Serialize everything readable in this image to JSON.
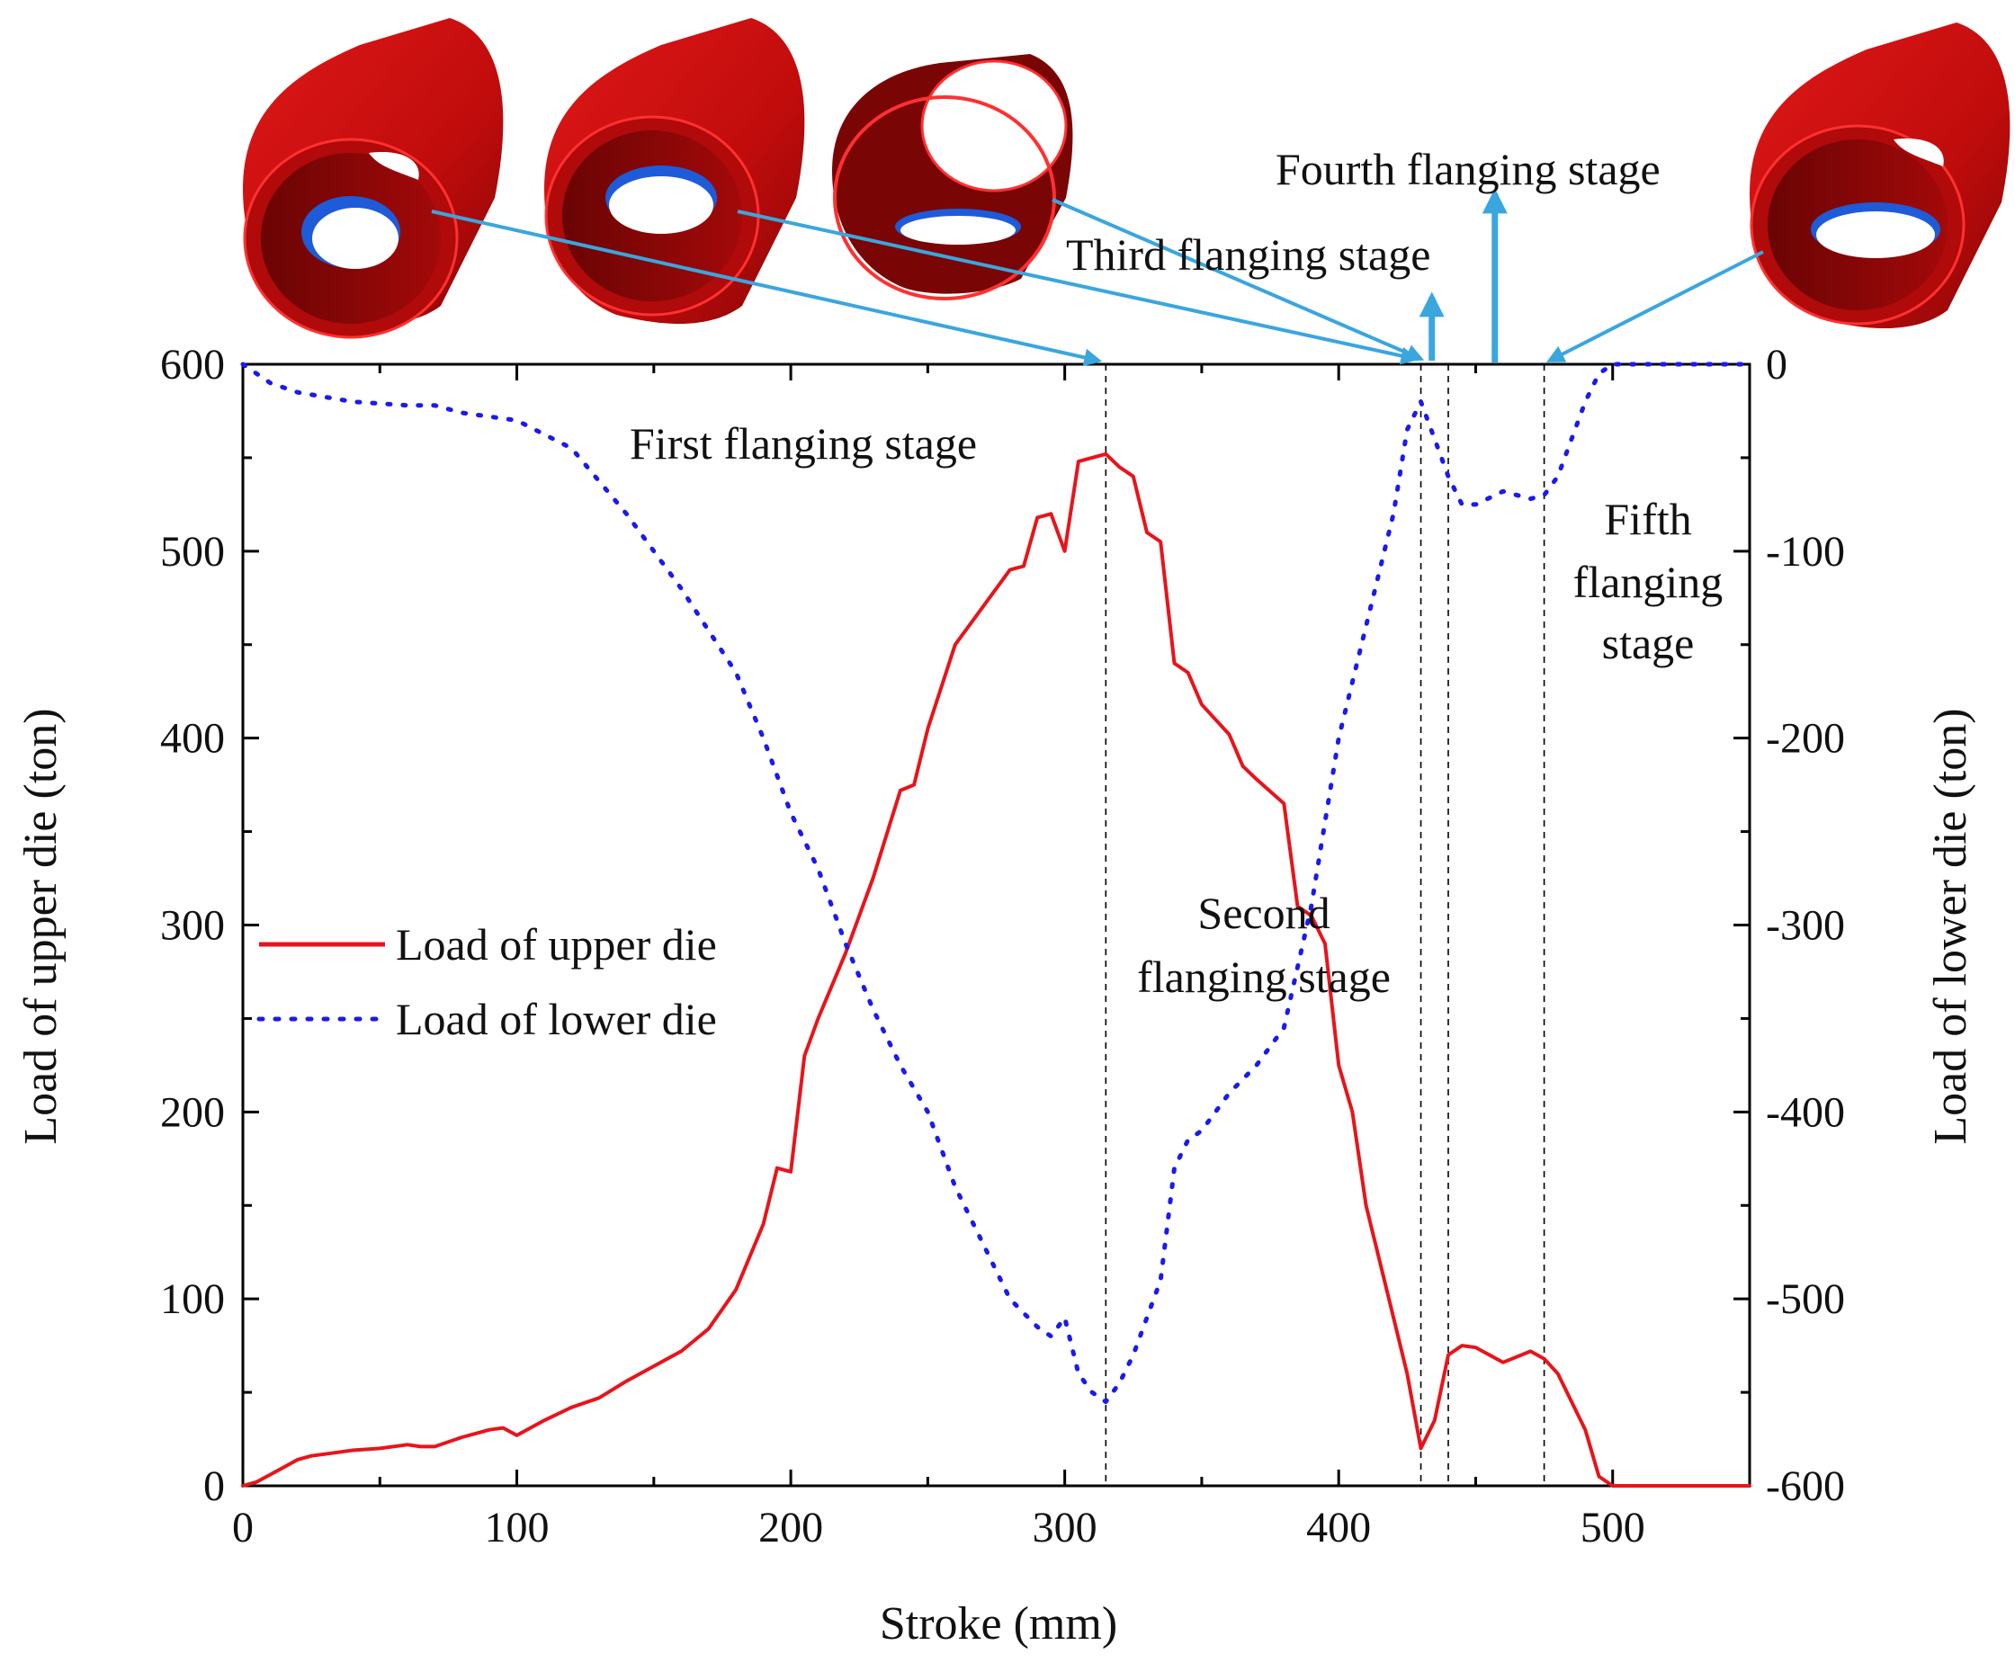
{
  "chart_data": {
    "type": "line",
    "title": "",
    "xlabel": "Stroke (mm)",
    "ylabel": "Load of upper die (ton)",
    "y2label": "Load of lower die (ton)",
    "xlim": [
      0,
      550
    ],
    "ylim": [
      0,
      600
    ],
    "y2lim": [
      -600,
      0
    ],
    "x_ticks": [
      0,
      100,
      200,
      300,
      400,
      500
    ],
    "y_ticks": [
      0,
      100,
      200,
      300,
      400,
      500,
      600
    ],
    "y2_ticks": [
      -600,
      -500,
      -400,
      -300,
      -200,
      -100,
      0
    ],
    "grid": false,
    "legend_position": "center-left",
    "series": [
      {
        "name": "Load of upper die",
        "axis": "left",
        "style": "solid",
        "color": "#e8141b",
        "x": [
          0,
          5,
          10,
          15,
          20,
          25,
          30,
          40,
          50,
          60,
          65,
          70,
          80,
          90,
          95,
          100,
          110,
          120,
          130,
          140,
          150,
          160,
          170,
          180,
          190,
          195,
          200,
          205,
          210,
          220,
          230,
          240,
          245,
          250,
          260,
          270,
          280,
          285,
          290,
          295,
          300,
          305,
          310,
          315,
          320,
          325,
          330,
          335,
          340,
          345,
          350,
          360,
          365,
          370,
          380,
          385,
          390,
          395,
          400,
          405,
          410,
          420,
          425,
          430,
          435,
          440,
          445,
          450,
          460,
          470,
          475,
          480,
          490,
          495,
          500,
          550
        ],
        "values": [
          0,
          2,
          6,
          10,
          14,
          16,
          17,
          19,
          20,
          22,
          21,
          21,
          26,
          30,
          31,
          27,
          35,
          42,
          47,
          56,
          64,
          72,
          84,
          105,
          140,
          170,
          168,
          230,
          250,
          285,
          325,
          372,
          375,
          405,
          450,
          470,
          490,
          492,
          518,
          520,
          500,
          548,
          550,
          552,
          545,
          540,
          510,
          505,
          440,
          435,
          418,
          402,
          385,
          378,
          365,
          310,
          305,
          290,
          225,
          200,
          150,
          90,
          60,
          20,
          35,
          70,
          75,
          74,
          66,
          72,
          68,
          60,
          30,
          5,
          0,
          0
        ]
      },
      {
        "name": "Load of lower die",
        "axis": "right",
        "style": "dotted",
        "color": "#1a1aee",
        "x": [
          0,
          10,
          20,
          40,
          60,
          70,
          80,
          90,
          100,
          120,
          140,
          160,
          180,
          190,
          200,
          210,
          220,
          230,
          240,
          250,
          260,
          270,
          280,
          290,
          295,
          300,
          305,
          310,
          315,
          320,
          325,
          330,
          335,
          340,
          345,
          350,
          360,
          370,
          380,
          390,
          400,
          410,
          420,
          425,
          430,
          435,
          440,
          445,
          450,
          460,
          470,
          475,
          480,
          490,
          495,
          500,
          550
        ],
        "values": [
          0,
          -10,
          -15,
          -20,
          -22,
          -22,
          -26,
          -28,
          -30,
          -45,
          -80,
          -120,
          -165,
          -200,
          -240,
          -270,
          -310,
          -345,
          -375,
          -400,
          -440,
          -470,
          -500,
          -515,
          -520,
          -510,
          -540,
          -550,
          -555,
          -545,
          -530,
          -510,
          -490,
          -430,
          -415,
          -410,
          -390,
          -375,
          -355,
          -290,
          -200,
          -140,
          -80,
          -35,
          -20,
          -40,
          -60,
          -75,
          -75,
          -68,
          -72,
          -70,
          -60,
          -20,
          -5,
          0,
          0
        ]
      }
    ],
    "stage_lines_x": [
      315,
      430,
      440,
      475
    ],
    "annotations": [
      {
        "text": "First flanging stage"
      },
      {
        "text": "Second"
      },
      {
        "text": "flanging stage"
      },
      {
        "text": "Third flanging stage"
      },
      {
        "text": "Fourth flanging stage"
      },
      {
        "text": "Fifth"
      },
      {
        "text": "flanging"
      },
      {
        "text": "stage"
      }
    ]
  },
  "colors": {
    "upper": "#e8141b",
    "lower": "#1a1aee",
    "arrow": "#3aa6de",
    "tube": "#c40d0d",
    "tube_dark": "#7d0505"
  }
}
